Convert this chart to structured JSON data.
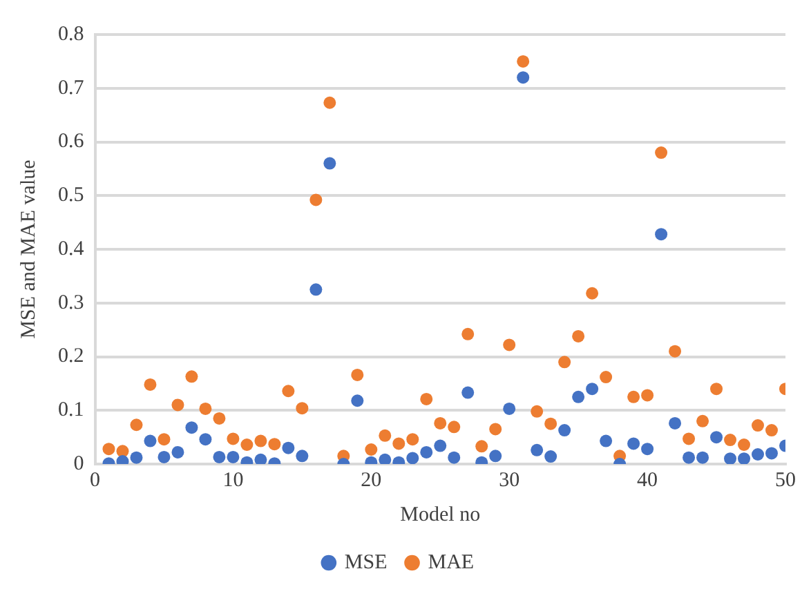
{
  "chart_data": {
    "type": "scatter",
    "xlabel": "Model no",
    "ylabel": "MSE and MAE value",
    "x": [
      1,
      2,
      3,
      4,
      5,
      6,
      7,
      8,
      9,
      10,
      11,
      12,
      13,
      14,
      15,
      16,
      17,
      18,
      19,
      20,
      21,
      22,
      23,
      24,
      25,
      26,
      27,
      28,
      29,
      30,
      31,
      32,
      33,
      34,
      35,
      36,
      37,
      38,
      39,
      40,
      41,
      42,
      43,
      44,
      45,
      46,
      47,
      48,
      49,
      50
    ],
    "series": [
      {
        "name": "MSE",
        "color": "#4472c4",
        "values": [
          0.001,
          0.005,
          0.012,
          0.043,
          0.013,
          0.022,
          0.068,
          0.046,
          0.013,
          0.013,
          0.003,
          0.008,
          0.001,
          0.03,
          0.015,
          0.325,
          0.56,
          0.0,
          0.118,
          0.003,
          0.008,
          0.003,
          0.011,
          0.022,
          0.034,
          0.012,
          0.133,
          0.003,
          0.015,
          0.103,
          0.72,
          0.026,
          0.014,
          0.063,
          0.125,
          0.14,
          0.043,
          0.0,
          0.038,
          0.028,
          0.428,
          0.076,
          0.012,
          0.012,
          0.05,
          0.01,
          0.01,
          0.018,
          0.02,
          0.034
        ]
      },
      {
        "name": "MAE",
        "color": "#ed7d31",
        "values": [
          0.028,
          0.024,
          0.073,
          0.148,
          0.046,
          0.11,
          0.163,
          0.103,
          0.085,
          0.047,
          0.036,
          0.043,
          0.037,
          0.136,
          0.104,
          0.492,
          0.673,
          0.015,
          0.166,
          0.027,
          0.053,
          0.038,
          0.046,
          0.121,
          0.076,
          0.069,
          0.242,
          0.033,
          0.065,
          0.222,
          0.75,
          0.098,
          0.075,
          0.19,
          0.238,
          0.318,
          0.162,
          0.015,
          0.125,
          0.128,
          0.58,
          0.21,
          0.047,
          0.08,
          0.14,
          0.045,
          0.036,
          0.072,
          0.063,
          0.14
        ]
      }
    ],
    "xlim": [
      0,
      50
    ],
    "xticks": [
      0,
      10,
      20,
      30,
      40,
      50
    ],
    "ylim": [
      0,
      0.8
    ],
    "yticks": [
      0,
      0.1,
      0.2,
      0.3,
      0.4,
      0.5,
      0.6,
      0.7,
      0.8
    ],
    "grid": "y",
    "legend": "bottom",
    "marker": "circle"
  }
}
